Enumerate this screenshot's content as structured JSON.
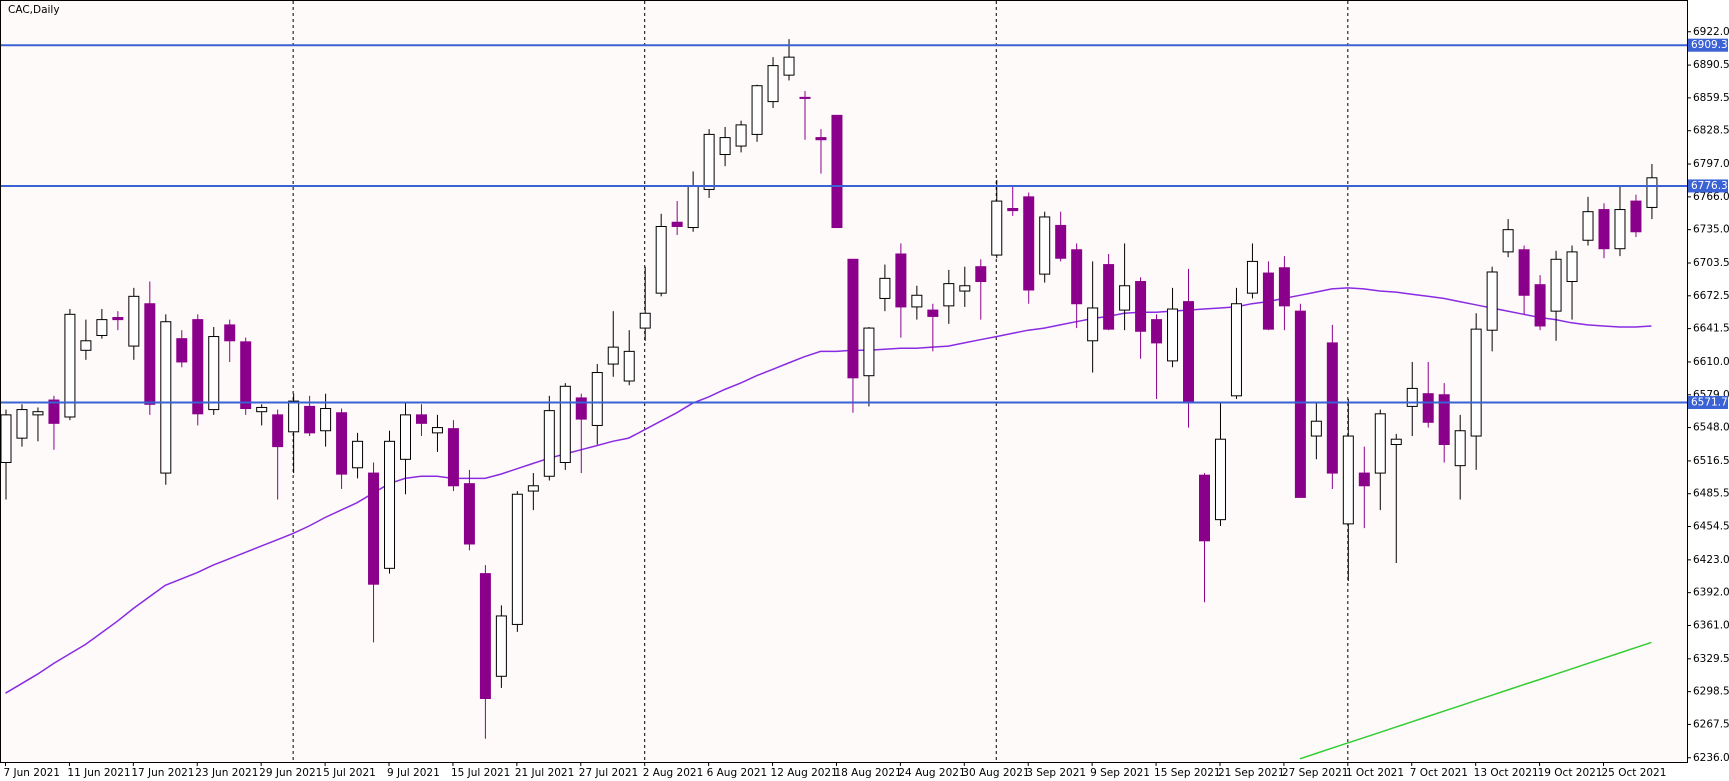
{
  "chart_data": {
    "type": "candlestick",
    "title": "CAC,Daily",
    "categories": [
      "7 Jun 2021",
      null,
      null,
      null,
      "11 Jun 2021",
      null,
      null,
      null,
      "17 Jun 2021",
      null,
      null,
      null,
      "23 Jun 2021",
      null,
      null,
      null,
      "29 Jun 2021",
      null,
      null,
      null,
      "5 Jul 2021",
      null,
      null,
      null,
      "9 Jul 2021",
      null,
      null,
      null,
      "15 Jul 2021",
      null,
      null,
      null,
      "21 Jul 2021",
      null,
      null,
      null,
      "27 Jul 2021",
      null,
      null,
      null,
      "2 Aug 2021",
      null,
      null,
      null,
      "6 Aug 2021",
      null,
      null,
      null,
      "12 Aug 2021",
      null,
      null,
      null,
      "18 Aug 2021",
      null,
      null,
      null,
      "24 Aug 2021",
      null,
      null,
      null,
      "30 Aug 2021",
      null,
      null,
      null,
      "3 Sep 2021",
      null,
      null,
      null,
      "9 Sep 2021",
      null,
      null,
      null,
      "15 Sep 2021",
      null,
      null,
      null,
      "21 Sep 2021",
      null,
      null,
      null,
      "27 Sep 2021",
      null,
      null,
      null,
      "1 Oct 2021",
      null,
      null,
      null,
      "7 Oct 2021",
      null,
      null,
      null,
      "13 Oct 2021",
      null,
      null,
      null,
      "19 Oct 2021",
      null,
      null,
      null,
      "25 Oct 2021",
      null,
      null,
      null
    ],
    "ohlc": [
      [
        6515,
        6565,
        6480,
        6560
      ],
      [
        6538,
        6570,
        6530,
        6565
      ],
      [
        6560,
        6567,
        6535,
        6563
      ],
      [
        6574,
        6578,
        6527,
        6552
      ],
      [
        6558,
        6660,
        6555,
        6655
      ],
      [
        6621,
        6650,
        6612,
        6630
      ],
      [
        6635,
        6660,
        6632,
        6650
      ],
      [
        6652,
        6658,
        6640,
        6650
      ],
      [
        6625,
        6680,
        6612,
        6672
      ],
      [
        6665,
        6686,
        6560,
        6570
      ],
      [
        6505,
        6655,
        6494,
        6648
      ],
      [
        6632,
        6640,
        6605,
        6610
      ],
      [
        6650,
        6655,
        6550,
        6561
      ],
      [
        6565,
        6643,
        6560,
        6634
      ],
      [
        6645,
        6650,
        6610,
        6630
      ],
      [
        6629,
        6633,
        6560,
        6566
      ],
      [
        6563,
        6570,
        6550,
        6567
      ],
      [
        6560,
        6565,
        6480,
        6530
      ],
      [
        6544,
        6580,
        6505,
        6573
      ],
      [
        6568,
        6578,
        6540,
        6543
      ],
      [
        6545,
        6580,
        6530,
        6566
      ],
      [
        6562,
        6566,
        6490,
        6504
      ],
      [
        6510,
        6543,
        6500,
        6535
      ],
      [
        6505,
        6515,
        6345,
        6400
      ],
      [
        6415,
        6545,
        6410,
        6535
      ],
      [
        6518,
        6572,
        6485,
        6560
      ],
      [
        6560,
        6570,
        6540,
        6552
      ],
      [
        6543,
        6560,
        6525,
        6548
      ],
      [
        6547,
        6555,
        6488,
        6493
      ],
      [
        6495,
        6508,
        6432,
        6438
      ],
      [
        6410,
        6418,
        6254,
        6292
      ],
      [
        6313,
        6380,
        6302,
        6370
      ],
      [
        6362,
        6488,
        6355,
        6485
      ],
      [
        6488,
        6505,
        6470,
        6493
      ],
      [
        6502,
        6578,
        6498,
        6564
      ],
      [
        6515,
        6590,
        6508,
        6587
      ],
      [
        6576,
        6580,
        6505,
        6556
      ],
      [
        6550,
        6608,
        6532,
        6600
      ],
      [
        6608,
        6658,
        6596,
        6624
      ],
      [
        6592,
        6640,
        6588,
        6620
      ],
      [
        6642,
        6700,
        6630,
        6656
      ],
      [
        6675,
        6750,
        6672,
        6738
      ],
      [
        6742,
        6762,
        6730,
        6738
      ],
      [
        6737,
        6790,
        6733,
        6776
      ],
      [
        6773,
        6830,
        6765,
        6825
      ],
      [
        6806,
        6832,
        6795,
        6822
      ],
      [
        6814,
        6838,
        6808,
        6834
      ],
      [
        6825,
        6872,
        6818,
        6871
      ],
      [
        6856,
        6898,
        6850,
        6890
      ],
      [
        6881,
        6915,
        6876,
        6898
      ],
      [
        6860,
        6866,
        6820,
        6859
      ],
      [
        6822,
        6830,
        6788,
        6820
      ],
      [
        6843,
        6843,
        6737,
        6737
      ],
      [
        6707,
        6707,
        6562,
        6595
      ],
      [
        6597,
        6643,
        6568,
        6642
      ],
      [
        6670,
        6702,
        6658,
        6689
      ],
      [
        6712,
        6722,
        6633,
        6662
      ],
      [
        6662,
        6682,
        6650,
        6673
      ],
      [
        6659,
        6665,
        6620,
        6653
      ],
      [
        6663,
        6697,
        6646,
        6684
      ],
      [
        6677,
        6700,
        6662,
        6682
      ],
      [
        6700,
        6707,
        6650,
        6686
      ],
      [
        6711,
        6782,
        6708,
        6762
      ],
      [
        6755,
        6776,
        6748,
        6753
      ],
      [
        6766,
        6770,
        6665,
        6678
      ],
      [
        6693,
        6752,
        6685,
        6747
      ],
      [
        6739,
        6752,
        6705,
        6708
      ],
      [
        6716,
        6722,
        6642,
        6665
      ],
      [
        6630,
        6705,
        6600,
        6661
      ],
      [
        6702,
        6712,
        6640,
        6641
      ],
      [
        6659,
        6722,
        6640,
        6682
      ],
      [
        6686,
        6690,
        6613,
        6639
      ],
      [
        6650,
        6655,
        6575,
        6628
      ],
      [
        6611,
        6680,
        6605,
        6660
      ],
      [
        6667,
        6698,
        6548,
        6572
      ],
      [
        6503,
        6505,
        6383,
        6441
      ],
      [
        6461,
        6572,
        6455,
        6537
      ],
      [
        6578,
        6680,
        6575,
        6665
      ],
      [
        6675,
        6722,
        6670,
        6705
      ],
      [
        6694,
        6705,
        6640,
        6641
      ],
      [
        6699,
        6710,
        6640,
        6663
      ],
      [
        6658,
        6665,
        6482,
        6482
      ],
      [
        6540,
        6572,
        6518,
        6554
      ],
      [
        6628,
        6645,
        6490,
        6505
      ],
      [
        6457,
        6575,
        6403,
        6540
      ],
      [
        6505,
        6530,
        6453,
        6493
      ],
      [
        6505,
        6565,
        6470,
        6561
      ],
      [
        6532,
        6542,
        6420,
        6537
      ],
      [
        6568,
        6610,
        6540,
        6585
      ],
      [
        6580,
        6610,
        6548,
        6553
      ],
      [
        6579,
        6590,
        6515,
        6532
      ],
      [
        6512,
        6560,
        6480,
        6545
      ],
      [
        6540,
        6656,
        6508,
        6641
      ],
      [
        6640,
        6700,
        6620,
        6695
      ],
      [
        6714,
        6745,
        6709,
        6735
      ],
      [
        6716,
        6720,
        6655,
        6673
      ],
      [
        6683,
        6692,
        6640,
        6644
      ],
      [
        6658,
        6715,
        6630,
        6707
      ],
      [
        6686,
        6720,
        6650,
        6714
      ],
      [
        6725,
        6766,
        6720,
        6752
      ],
      [
        6754,
        6760,
        6708,
        6717
      ],
      [
        6717,
        6776,
        6710,
        6754
      ],
      [
        6762,
        6768,
        6728,
        6733
      ],
      [
        6756,
        6797,
        6745,
        6784
      ]
    ],
    "up_color": "#ffffff",
    "down_color": "#8b008b",
    "lines": [
      {
        "color": "#8a2be2",
        "values": [
          6297,
          6306,
          6315,
          6325,
          6334,
          6343,
          6354,
          6365,
          6377,
          6388,
          6399,
          6405,
          6411,
          6418,
          6424,
          6430,
          6436,
          6442,
          6448,
          6455,
          6463,
          6470,
          6477,
          6486,
          6495,
          6500,
          6502,
          6502,
          6500,
          6500,
          6500,
          6504,
          6509,
          6514,
          6519,
          6523,
          6527,
          6531,
          6535,
          6538,
          6546,
          6554,
          6562,
          6571,
          6577,
          6584,
          6590,
          6597,
          6603,
          6609,
          6615,
          6620,
          6620,
          6621,
          6621,
          6622,
          6623,
          6623,
          6624,
          6625,
          6628,
          6631,
          6634,
          6637,
          6640,
          6642,
          6645,
          6648,
          6651,
          6653,
          6656,
          6657,
          6657,
          6658,
          6659,
          6660,
          6661,
          6662,
          6665,
          6667,
          6670,
          6673,
          6676,
          6679,
          6680,
          6679,
          6677,
          6676,
          6674,
          6672,
          6670,
          6667,
          6664,
          6661,
          6658,
          6655,
          6652,
          6650,
          6647,
          6645,
          6644,
          6643,
          6643,
          6644
        ]
      },
      {
        "color": "#32cd32",
        "values": [
          null,
          null,
          null,
          null,
          null,
          null,
          null,
          null,
          null,
          null,
          null,
          null,
          null,
          null,
          null,
          null,
          null,
          null,
          null,
          null,
          null,
          null,
          null,
          null,
          null,
          null,
          null,
          null,
          null,
          null,
          null,
          null,
          null,
          null,
          null,
          null,
          null,
          null,
          null,
          null,
          null,
          null,
          null,
          null,
          null,
          null,
          null,
          null,
          null,
          null,
          null,
          null,
          null,
          null,
          null,
          null,
          null,
          null,
          null,
          null,
          null,
          null,
          null,
          null,
          null,
          null,
          null,
          null,
          null,
          null,
          null,
          null,
          null,
          null,
          null,
          null,
          null,
          null,
          null,
          null,
          null,
          6235,
          6240,
          6245,
          6250,
          6255,
          6260,
          6265,
          6270,
          6275,
          6280,
          6285,
          6290,
          6295,
          6300,
          6305,
          6310,
          6315,
          6320,
          6325,
          6330,
          6335,
          6340,
          6345
        ]
      }
    ],
    "levels": [
      6909.3,
      6776.3,
      6571.7
    ],
    "level_color": "#3a62d4",
    "ylim": [
      6232,
      6952
    ],
    "yticks": [
      {
        "value": 6922,
        "label": "6922.0"
      },
      6890.5,
      6859.5,
      6828.5,
      {
        "value": 6797,
        "label": "6797.0"
      },
      {
        "value": 6766,
        "label": "6766.0"
      },
      {
        "value": 6735,
        "label": "6735.0"
      },
      6703.5,
      6672.5,
      6641.5,
      {
        "value": 6610,
        "label": "6610.0"
      },
      {
        "value": 6579,
        "label": "6579.0"
      },
      {
        "value": 6548,
        "label": "6548.0"
      },
      6516.5,
      6485.5,
      6454.5,
      {
        "value": 6423,
        "label": "6423.0"
      },
      {
        "value": 6392,
        "label": "6392.0"
      },
      {
        "value": 6361,
        "label": "6361.0"
      },
      6329.5,
      6298.5,
      6267.5,
      {
        "value": 6236,
        "label": "6236.0"
      }
    ]
  }
}
